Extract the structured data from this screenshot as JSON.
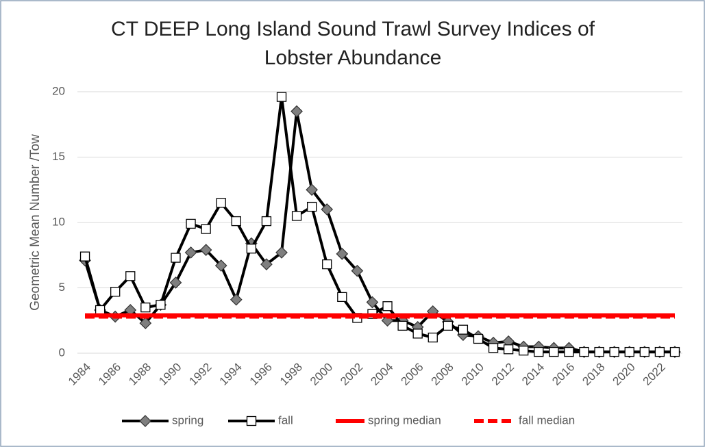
{
  "chart_data": {
    "type": "line",
    "title": "CT DEEP Long Island Sound Trawl Survey Indices of Lobster Abundance",
    "y_label": "Geometric Mean Number /Tow",
    "x": [
      1984,
      1985,
      1986,
      1987,
      1988,
      1989,
      1990,
      1991,
      1992,
      1993,
      1994,
      1995,
      1996,
      1997,
      1998,
      1999,
      2000,
      2001,
      2002,
      2003,
      2004,
      2005,
      2006,
      2007,
      2008,
      2009,
      2010,
      2011,
      2012,
      2013,
      2014,
      2015,
      2016,
      2017,
      2018,
      2019,
      2020,
      2021,
      2022,
      2023
    ],
    "xlim": [
      1983.5,
      2023.5
    ],
    "xticks": [
      1984,
      1986,
      1988,
      1990,
      1992,
      1994,
      1996,
      1998,
      2000,
      2002,
      2004,
      2006,
      2008,
      2010,
      2012,
      2014,
      2016,
      2018,
      2020,
      2022
    ],
    "ylim": [
      0,
      20
    ],
    "yticks": [
      0,
      5,
      10,
      15,
      20
    ],
    "grid": true,
    "legend": "bottom",
    "series": [
      {
        "name": "spring",
        "color": "#000000",
        "marker": "diamond",
        "marker_color": "#7f7f7f",
        "values": [
          7.1,
          3.3,
          2.8,
          3.3,
          2.3,
          3.7,
          5.4,
          7.7,
          7.9,
          6.7,
          4.1,
          8.4,
          6.8,
          7.7,
          18.5,
          12.5,
          11.0,
          7.6,
          6.3,
          3.9,
          2.5,
          2.5,
          2.0,
          3.2,
          2.4,
          1.4,
          1.3,
          0.8,
          0.9,
          0.5,
          0.5,
          0.4,
          0.4,
          0.1,
          0.1,
          0.1,
          0.1,
          0.1,
          0.1,
          0.1
        ]
      },
      {
        "name": "fall",
        "color": "#000000",
        "marker": "square",
        "marker_color": "#ffffff",
        "values": [
          7.4,
          3.3,
          4.7,
          5.9,
          3.5,
          3.7,
          7.3,
          9.9,
          9.5,
          11.5,
          10.1,
          8.0,
          10.1,
          19.6,
          10.5,
          11.2,
          6.8,
          4.3,
          2.7,
          3.0,
          3.6,
          2.1,
          1.5,
          1.2,
          2.1,
          1.8,
          1.1,
          0.4,
          0.3,
          0.2,
          0.1,
          0.1,
          0.1,
          0.1,
          0.1,
          0.1,
          0.1,
          0.1,
          0.1,
          0.1
        ]
      },
      {
        "name": "spring median",
        "color": "#ff0000",
        "dash": false,
        "values": [
          2.9,
          2.9,
          2.9,
          2.9,
          2.9,
          2.9,
          2.9,
          2.9,
          2.9,
          2.9,
          2.9,
          2.9,
          2.9,
          2.9,
          2.9,
          2.9,
          2.9,
          2.9,
          2.9,
          2.9,
          2.9,
          2.9,
          2.9,
          2.9,
          2.9,
          2.9,
          2.9,
          2.9,
          2.9,
          2.9,
          2.9,
          2.9,
          2.9,
          2.9,
          2.9,
          2.9,
          2.9,
          2.9,
          2.9,
          2.9
        ]
      },
      {
        "name": "fall median",
        "color": "#ff0000",
        "dash": true,
        "values": [
          2.8,
          2.8,
          2.8,
          2.8,
          2.8,
          2.8,
          2.8,
          2.8,
          2.8,
          2.8,
          2.8,
          2.8,
          2.8,
          2.8,
          2.8,
          2.8,
          2.8,
          2.8,
          2.8,
          2.8,
          2.8,
          2.8,
          2.8,
          2.8,
          2.8,
          2.8,
          2.8,
          2.8,
          2.8,
          2.8,
          2.8,
          2.8,
          2.8,
          2.8,
          2.8,
          2.8,
          2.8,
          2.8,
          2.8,
          2.8
        ]
      }
    ]
  }
}
